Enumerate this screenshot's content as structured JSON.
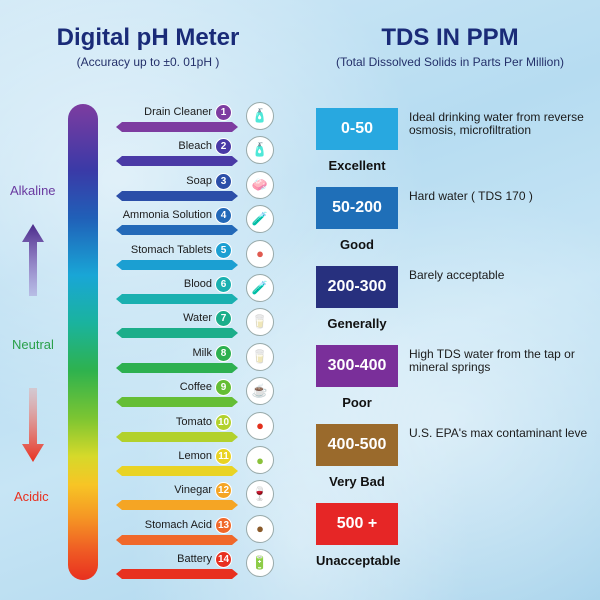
{
  "left_title": "Digital pH Meter",
  "left_subtitle": "(Accuracy up to  ±0. 01pH )",
  "right_title": "TDS IN PPM",
  "right_subtitle": "(Total Dissolved Solids in Parts Per Million)",
  "scale_labels": {
    "alkaline": "Alkaline",
    "neutral": "Neutral",
    "acidic": "Acidic"
  },
  "ph_items": [
    {
      "num": "1",
      "name": "Drain Cleaner",
      "color": "#7d3ca0",
      "icon": "drain-cleaner-icon"
    },
    {
      "num": "2",
      "name": "Bleach",
      "color": "#4a3aa6",
      "icon": "bleach-bottle-icon"
    },
    {
      "num": "3",
      "name": "Soap",
      "color": "#2b4ea8",
      "icon": "soap-icon"
    },
    {
      "num": "4",
      "name": "Ammonia Solution",
      "color": "#2369b8",
      "icon": "ammonia-bottle-icon"
    },
    {
      "num": "5",
      "name": "Stomach Tablets",
      "color": "#1b9fd2",
      "icon": "stomach-icon"
    },
    {
      "num": "6",
      "name": "Blood",
      "color": "#1ab0b0",
      "icon": "blood-tube-icon"
    },
    {
      "num": "7",
      "name": "Water",
      "color": "#1cae8a",
      "icon": "water-glass-icon"
    },
    {
      "num": "8",
      "name": "Milk",
      "color": "#2db050",
      "icon": "milk-glass-icon"
    },
    {
      "num": "9",
      "name": "Coffee",
      "color": "#65be35",
      "icon": "coffee-cup-icon"
    },
    {
      "num": "10",
      "name": "Tomato",
      "color": "#b2d12c",
      "icon": "tomato-icon"
    },
    {
      "num": "11",
      "name": "Lemon",
      "color": "#e9d324",
      "icon": "lemon-icon"
    },
    {
      "num": "12",
      "name": "Vinegar",
      "color": "#f5a524",
      "icon": "vinegar-bottle-icon"
    },
    {
      "num": "13",
      "name": "Stomach Acid",
      "color": "#f0682a",
      "icon": "stomach-acid-icon"
    },
    {
      "num": "14",
      "name": "Battery",
      "color": "#e8301f",
      "icon": "battery-icon"
    }
  ],
  "tds_items": [
    {
      "range": "0-50",
      "label": "Excellent",
      "desc": "Ideal drinking water from reverse osmosis, microfiltration",
      "color": "#28a8e0"
    },
    {
      "range": "50-200",
      "label": "Good",
      "desc": "Hard water ( TDS 170 )",
      "color": "#1f6fb8"
    },
    {
      "range": "200-300",
      "label": "Generally",
      "desc": "Barely acceptable",
      "color": "#27307e"
    },
    {
      "range": "300-400",
      "label": "Poor",
      "desc": "High TDS water from the tap or mineral springs",
      "color": "#7a2f9a"
    },
    {
      "range": "400-500",
      "label": "Very Bad",
      "desc": "U.S. EPA's max contaminant leve",
      "color": "#9a6a2c"
    },
    {
      "range": "500 +",
      "label": "Unacceptable",
      "desc": "",
      "color": "#e62626"
    }
  ]
}
